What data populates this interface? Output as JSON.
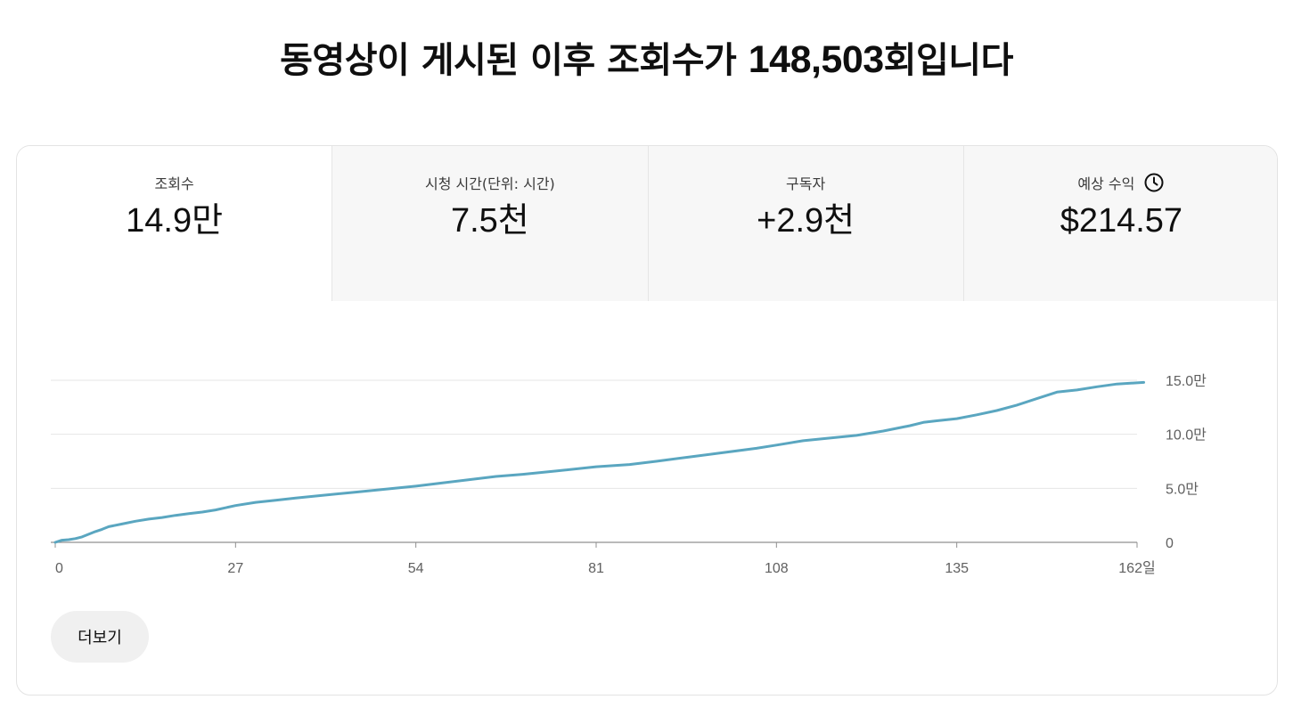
{
  "headline": {
    "prefix": "동영상이 게시된 이후 조회수가 ",
    "count": "148,503",
    "suffix": "회입니다"
  },
  "tabs": [
    {
      "label": "조회수",
      "value": "14.9만",
      "active": true
    },
    {
      "label": "시청 시간(단위: 시간)",
      "value": "7.5천",
      "active": false
    },
    {
      "label": "구독자",
      "value": "+2.9천",
      "active": false
    },
    {
      "label": "예상 수익",
      "value": "$214.57",
      "active": false,
      "icon": "clock-icon"
    }
  ],
  "more_button": "더보기",
  "colors": {
    "line": "#5aa6c0",
    "grid": "#e6e6e6",
    "axis": "#909090"
  },
  "chart_data": {
    "type": "line",
    "xlabel": "",
    "ylabel": "",
    "xlim": [
      0,
      162
    ],
    "ylim": [
      0,
      150000
    ],
    "x_ticks": [
      0,
      27,
      54,
      81,
      108,
      135,
      162
    ],
    "x_tick_labels": [
      "0",
      "27",
      "54",
      "81",
      "108",
      "135",
      "162일"
    ],
    "y_ticks": [
      0,
      50000,
      100000,
      150000
    ],
    "y_tick_labels": [
      "0",
      "5.0만",
      "10.0만",
      "15.0만"
    ],
    "grid": true,
    "series": [
      {
        "x": [
          0,
          1,
          2,
          3,
          4,
          5,
          6,
          7,
          8,
          10,
          12,
          14,
          16,
          18,
          20,
          22,
          24,
          27,
          30,
          33,
          36,
          40,
          45,
          50,
          54,
          58,
          62,
          66,
          70,
          75,
          81,
          86,
          90,
          95,
          100,
          105,
          108,
          112,
          116,
          120,
          124,
          128,
          130,
          132,
          135,
          138,
          141,
          144,
          147,
          150,
          153,
          156,
          159,
          163
        ],
        "y": [
          0,
          2000,
          2500,
          3500,
          5000,
          7500,
          10000,
          12000,
          14500,
          17000,
          19500,
          21500,
          23000,
          25000,
          26500,
          28000,
          30000,
          34000,
          37000,
          39000,
          41000,
          43500,
          46500,
          49500,
          52000,
          55000,
          58000,
          61000,
          63000,
          66000,
          70000,
          72000,
          75000,
          79000,
          83000,
          87000,
          90000,
          94000,
          96500,
          99000,
          103000,
          108000,
          111000,
          112500,
          114500,
          118000,
          122000,
          127000,
          133000,
          139000,
          141000,
          144000,
          146500,
          148000
        ]
      }
    ]
  }
}
